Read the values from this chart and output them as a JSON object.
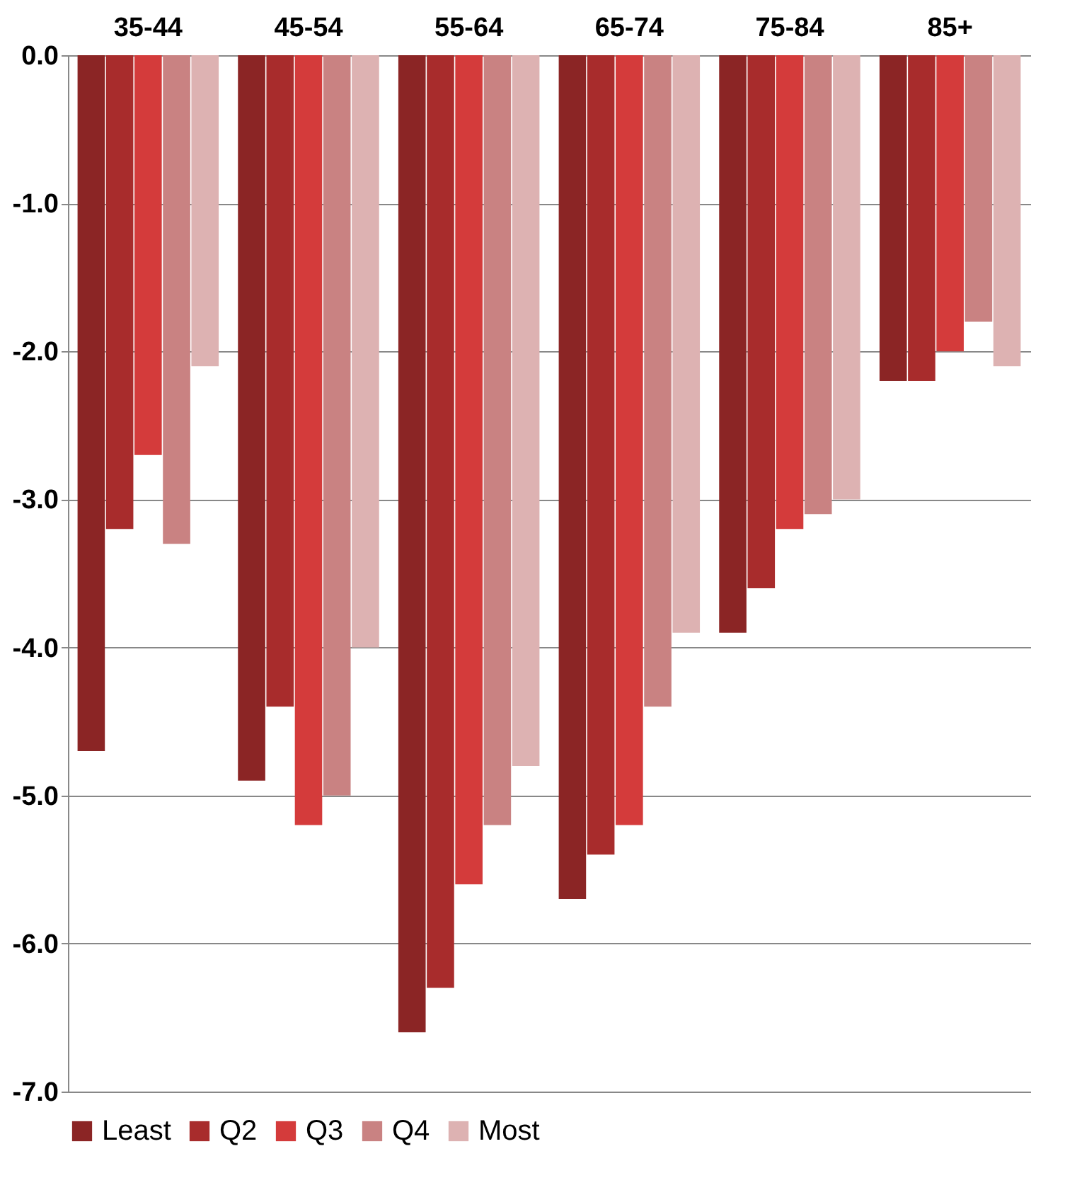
{
  "chart_data": {
    "type": "bar",
    "categories": [
      "35-44",
      "45-54",
      "55-64",
      "65-74",
      "75-84",
      "85+"
    ],
    "series": [
      {
        "name": "Least",
        "color": "#8b2525",
        "values": [
          -4.7,
          -4.9,
          -6.6,
          -5.7,
          -3.9,
          -2.2
        ]
      },
      {
        "name": "Q2",
        "color": "#a82c2c",
        "values": [
          -3.2,
          -4.4,
          -6.3,
          -5.4,
          -3.6,
          -2.2
        ]
      },
      {
        "name": "Q3",
        "color": "#d43b3b",
        "values": [
          -2.7,
          -5.2,
          -5.6,
          -5.2,
          -3.2,
          -2.0
        ]
      },
      {
        "name": "Q4",
        "color": "#c98282",
        "values": [
          -3.3,
          -5.0,
          -5.2,
          -4.4,
          -3.1,
          -1.8
        ]
      },
      {
        "name": "Most",
        "color": "#ddb2b2",
        "values": [
          -2.1,
          -4.0,
          -4.8,
          -3.9,
          -3.0,
          -2.1
        ]
      }
    ],
    "ylim": [
      -7,
      0
    ],
    "yticks": [
      {
        "value": 0,
        "label": "0.0"
      },
      {
        "value": -1,
        "label": "-1.0"
      },
      {
        "value": -2,
        "label": "-2.0"
      },
      {
        "value": -3,
        "label": "-3.0"
      },
      {
        "value": -4,
        "label": "-4.0"
      },
      {
        "value": -5,
        "label": "-5.0"
      },
      {
        "value": -6,
        "label": "-6.0"
      },
      {
        "value": -7,
        "label": "-7.0"
      }
    ],
    "grid": "y",
    "legend": "bottom"
  }
}
